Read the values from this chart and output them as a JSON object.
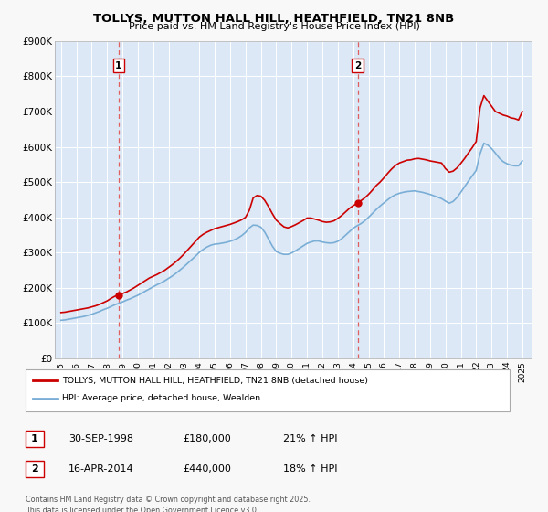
{
  "title": "TOLLYS, MUTTON HALL HILL, HEATHFIELD, TN21 8NB",
  "subtitle": "Price paid vs. HM Land Registry's House Price Index (HPI)",
  "fig_bg_color": "#f8f8f8",
  "plot_bg_color": "#dce8f5",
  "grid_color": "#ffffff",
  "ylim": [
    0,
    900000
  ],
  "yticks": [
    0,
    100000,
    200000,
    300000,
    400000,
    500000,
    600000,
    700000,
    800000,
    900000
  ],
  "ytick_labels": [
    "£0",
    "£100K",
    "£200K",
    "£300K",
    "£400K",
    "£500K",
    "£600K",
    "£700K",
    "£800K",
    "£900K"
  ],
  "xlim_start": 1994.6,
  "xlim_end": 2025.6,
  "sale1_x": 1998.75,
  "sale1_y": 180000,
  "sale2_x": 2014.29,
  "sale2_y": 440000,
  "vline_color": "#e06060",
  "sale_dot_color": "#cc0000",
  "red_line_color": "#cc0000",
  "blue_line_color": "#7aaed6",
  "legend_label_red": "TOLLYS, MUTTON HALL HILL, HEATHFIELD, TN21 8NB (detached house)",
  "legend_label_blue": "HPI: Average price, detached house, Wealden",
  "table_row1": [
    "1",
    "30-SEP-1998",
    "£180,000",
    "21% ↑ HPI"
  ],
  "table_row2": [
    "2",
    "16-APR-2014",
    "£440,000",
    "18% ↑ HPI"
  ],
  "footer": "Contains HM Land Registry data © Crown copyright and database right 2025.\nThis data is licensed under the Open Government Licence v3.0.",
  "red_x": [
    1995.0,
    1995.25,
    1995.5,
    1995.75,
    1996.0,
    1996.25,
    1996.5,
    1996.75,
    1997.0,
    1997.25,
    1997.5,
    1997.75,
    1998.0,
    1998.25,
    1998.5,
    1998.75,
    1999.0,
    1999.25,
    1999.5,
    1999.75,
    2000.0,
    2000.25,
    2000.5,
    2000.75,
    2001.0,
    2001.25,
    2001.5,
    2001.75,
    2002.0,
    2002.25,
    2002.5,
    2002.75,
    2003.0,
    2003.25,
    2003.5,
    2003.75,
    2004.0,
    2004.25,
    2004.5,
    2004.75,
    2005.0,
    2005.25,
    2005.5,
    2005.75,
    2006.0,
    2006.25,
    2006.5,
    2006.75,
    2007.0,
    2007.25,
    2007.5,
    2007.75,
    2008.0,
    2008.25,
    2008.5,
    2008.75,
    2009.0,
    2009.25,
    2009.5,
    2009.75,
    2010.0,
    2010.25,
    2010.5,
    2010.75,
    2011.0,
    2011.25,
    2011.5,
    2011.75,
    2012.0,
    2012.25,
    2012.5,
    2012.75,
    2013.0,
    2013.25,
    2013.5,
    2013.75,
    2014.0,
    2014.29,
    2014.5,
    2014.75,
    2015.0,
    2015.25,
    2015.5,
    2015.75,
    2016.0,
    2016.25,
    2016.5,
    2016.75,
    2017.0,
    2017.25,
    2017.5,
    2017.75,
    2018.0,
    2018.25,
    2018.5,
    2018.75,
    2019.0,
    2019.25,
    2019.5,
    2019.75,
    2020.0,
    2020.25,
    2020.5,
    2020.75,
    2021.0,
    2021.25,
    2021.5,
    2021.75,
    2022.0,
    2022.25,
    2022.5,
    2022.75,
    2023.0,
    2023.25,
    2023.5,
    2023.75,
    2024.0,
    2024.25,
    2024.5,
    2024.75,
    2025.0
  ],
  "red_y": [
    130000,
    131000,
    133000,
    135000,
    137000,
    139000,
    141000,
    143000,
    146000,
    149000,
    153000,
    158000,
    163000,
    170000,
    176000,
    180000,
    184000,
    188000,
    194000,
    200000,
    207000,
    214000,
    221000,
    228000,
    233000,
    238000,
    244000,
    250000,
    258000,
    266000,
    275000,
    285000,
    296000,
    308000,
    320000,
    332000,
    344000,
    352000,
    358000,
    363000,
    368000,
    371000,
    374000,
    377000,
    380000,
    384000,
    388000,
    393000,
    400000,
    420000,
    455000,
    462000,
    460000,
    448000,
    430000,
    410000,
    392000,
    382000,
    373000,
    370000,
    374000,
    379000,
    385000,
    391000,
    398000,
    398000,
    395000,
    392000,
    388000,
    386000,
    387000,
    390000,
    397000,
    405000,
    415000,
    425000,
    433000,
    440000,
    447000,
    455000,
    465000,
    477000,
    490000,
    500000,
    512000,
    525000,
    537000,
    547000,
    554000,
    558000,
    562000,
    563000,
    566000,
    567000,
    565000,
    563000,
    560000,
    558000,
    556000,
    554000,
    538000,
    528000,
    531000,
    540000,
    553000,
    567000,
    583000,
    598000,
    615000,
    710000,
    745000,
    730000,
    715000,
    700000,
    695000,
    690000,
    687000,
    682000,
    680000,
    676000,
    700000
  ],
  "blue_x": [
    1995.0,
    1995.25,
    1995.5,
    1995.75,
    1996.0,
    1996.25,
    1996.5,
    1996.75,
    1997.0,
    1997.25,
    1997.5,
    1997.75,
    1998.0,
    1998.25,
    1998.5,
    1998.75,
    1999.0,
    1999.25,
    1999.5,
    1999.75,
    2000.0,
    2000.25,
    2000.5,
    2000.75,
    2001.0,
    2001.25,
    2001.5,
    2001.75,
    2002.0,
    2002.25,
    2002.5,
    2002.75,
    2003.0,
    2003.25,
    2003.5,
    2003.75,
    2004.0,
    2004.25,
    2004.5,
    2004.75,
    2005.0,
    2005.25,
    2005.5,
    2005.75,
    2006.0,
    2006.25,
    2006.5,
    2006.75,
    2007.0,
    2007.25,
    2007.5,
    2007.75,
    2008.0,
    2008.25,
    2008.5,
    2008.75,
    2009.0,
    2009.25,
    2009.5,
    2009.75,
    2010.0,
    2010.25,
    2010.5,
    2010.75,
    2011.0,
    2011.25,
    2011.5,
    2011.75,
    2012.0,
    2012.25,
    2012.5,
    2012.75,
    2013.0,
    2013.25,
    2013.5,
    2013.75,
    2014.0,
    2014.25,
    2014.5,
    2014.75,
    2015.0,
    2015.25,
    2015.5,
    2015.75,
    2016.0,
    2016.25,
    2016.5,
    2016.75,
    2017.0,
    2017.25,
    2017.5,
    2017.75,
    2018.0,
    2018.25,
    2018.5,
    2018.75,
    2019.0,
    2019.25,
    2019.5,
    2019.75,
    2020.0,
    2020.25,
    2020.5,
    2020.75,
    2021.0,
    2021.25,
    2021.5,
    2021.75,
    2022.0,
    2022.25,
    2022.5,
    2022.75,
    2023.0,
    2023.25,
    2023.5,
    2023.75,
    2024.0,
    2024.25,
    2024.5,
    2024.75,
    2025.0
  ],
  "blue_y": [
    108000,
    109000,
    111000,
    113000,
    115000,
    117000,
    119000,
    122000,
    125000,
    129000,
    133000,
    138000,
    142000,
    147000,
    152000,
    156000,
    160000,
    165000,
    169000,
    174000,
    179000,
    185000,
    191000,
    197000,
    203000,
    209000,
    214000,
    220000,
    227000,
    234000,
    242000,
    251000,
    260000,
    270000,
    280000,
    290000,
    301000,
    309000,
    316000,
    321000,
    324000,
    325000,
    327000,
    329000,
    332000,
    336000,
    341000,
    348000,
    357000,
    370000,
    378000,
    377000,
    372000,
    358000,
    338000,
    318000,
    303000,
    298000,
    295000,
    295000,
    299000,
    305000,
    312000,
    319000,
    326000,
    330000,
    333000,
    333000,
    330000,
    328000,
    327000,
    328000,
    332000,
    339000,
    349000,
    359000,
    369000,
    376000,
    382000,
    390000,
    400000,
    411000,
    422000,
    432000,
    441000,
    450000,
    458000,
    464000,
    468000,
    471000,
    473000,
    474000,
    475000,
    473000,
    471000,
    468000,
    465000,
    461000,
    457000,
    453000,
    446000,
    440000,
    445000,
    456000,
    471000,
    487000,
    503000,
    518000,
    533000,
    580000,
    610000,
    605000,
    595000,
    582000,
    568000,
    558000,
    552000,
    548000,
    546000,
    546000,
    560000
  ]
}
